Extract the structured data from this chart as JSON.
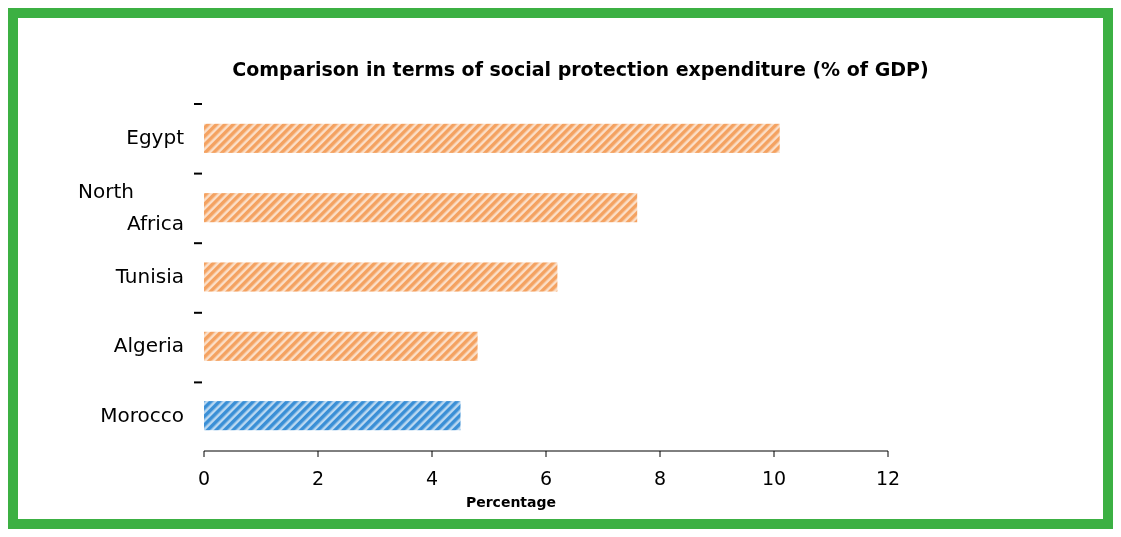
{
  "chart_data": {
    "type": "bar",
    "orientation": "horizontal",
    "title": "Comparison in terms of social protection expenditure (% of GDP)",
    "xlabel": "Percentage",
    "categories": [
      "Egypt",
      "North Africa",
      "Tunisia",
      "Algeria",
      "Morocco"
    ],
    "values": [
      10.1,
      7.6,
      6.2,
      4.8,
      4.5
    ],
    "colors": [
      "#f4a261",
      "#f4a261",
      "#f4a261",
      "#f4a261",
      "#3a8fd6"
    ],
    "xlim": [
      0,
      12
    ],
    "xticks": [
      0,
      2,
      4,
      6,
      8,
      10,
      12
    ]
  }
}
